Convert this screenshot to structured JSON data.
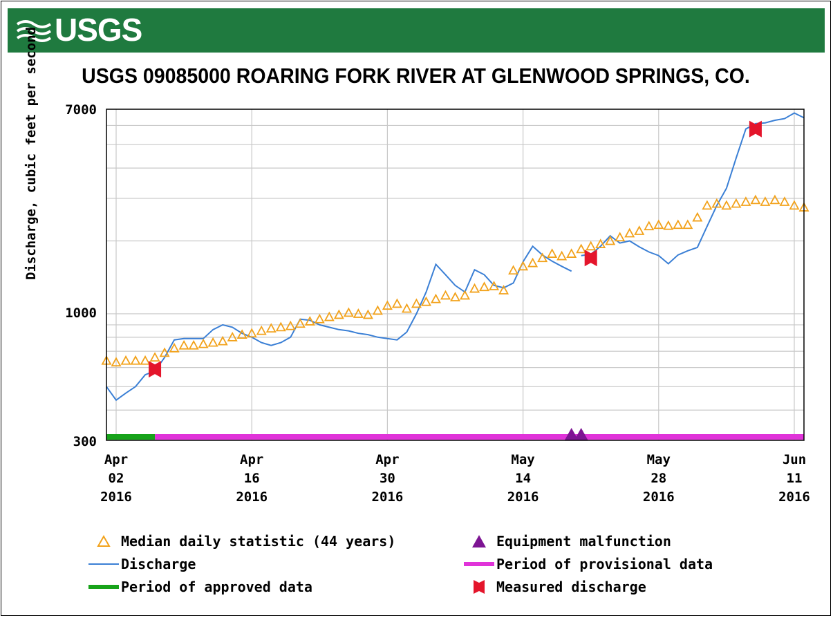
{
  "header": {
    "logo_text": "USGS",
    "title": "USGS 09085000 ROARING FORK RIVER AT GLENWOOD SPRINGS, CO."
  },
  "colors": {
    "banner": "#1f7a3f",
    "discharge": "#3a7fd5",
    "median": "#f2a21b",
    "approved": "#17a31a",
    "provisional": "#e033d9",
    "equipment": "#7d1493",
    "measured": "#e4152b"
  },
  "chart_data": {
    "type": "line",
    "title": "USGS 09085000 ROARING FORK RIVER AT GLENWOOD SPRINGS, CO.",
    "ylabel": "Discharge, cubic feet per second",
    "yscale": "log",
    "ylim": [
      300,
      7000
    ],
    "yticks": [
      "7000",
      "1000",
      "300"
    ],
    "xlim": [
      "2016-04-01",
      "2016-06-12"
    ],
    "xticks": [
      {
        "date": "2016-04-02",
        "line1": "Apr",
        "line2": "02",
        "line3": "2016"
      },
      {
        "date": "2016-04-16",
        "line1": "Apr",
        "line2": "16",
        "line3": "2016"
      },
      {
        "date": "2016-04-30",
        "line1": "Apr",
        "line2": "30",
        "line3": "2016"
      },
      {
        "date": "2016-05-14",
        "line1": "May",
        "line2": "14",
        "line3": "2016"
      },
      {
        "date": "2016-05-28",
        "line1": "May",
        "line2": "28",
        "line3": "2016"
      },
      {
        "date": "2016-06-11",
        "line1": "Jun",
        "line2": "11",
        "line3": "2016"
      }
    ],
    "grid": true,
    "series": [
      {
        "name": "Discharge",
        "kind": "line",
        "x": [
          "2016-04-01",
          "2016-04-02",
          "2016-04-03",
          "2016-04-04",
          "2016-04-05",
          "2016-04-06",
          "2016-04-07",
          "2016-04-08",
          "2016-04-09",
          "2016-04-10",
          "2016-04-11",
          "2016-04-12",
          "2016-04-13",
          "2016-04-14",
          "2016-04-15",
          "2016-04-16",
          "2016-04-17",
          "2016-04-18",
          "2016-04-19",
          "2016-04-20",
          "2016-04-21",
          "2016-04-22",
          "2016-04-23",
          "2016-04-24",
          "2016-04-25",
          "2016-04-26",
          "2016-04-27",
          "2016-04-28",
          "2016-04-29",
          "2016-04-30",
          "2016-05-01",
          "2016-05-02",
          "2016-05-03",
          "2016-05-04",
          "2016-05-05",
          "2016-05-06",
          "2016-05-07",
          "2016-05-08",
          "2016-05-09",
          "2016-05-10",
          "2016-05-11",
          "2016-05-12",
          "2016-05-13",
          "2016-05-14",
          "2016-05-15",
          "2016-05-16",
          "2016-05-17",
          "2016-05-18",
          "2016-05-19"
        ],
        "values": [
          500,
          440,
          470,
          500,
          560,
          580,
          660,
          780,
          790,
          790,
          790,
          860,
          900,
          880,
          830,
          800,
          760,
          740,
          760,
          800,
          950,
          940,
          900,
          880,
          860,
          850,
          830,
          820,
          800,
          790,
          780,
          840,
          1000,
          1230,
          1600,
          1450,
          1310,
          1230,
          1520,
          1450,
          1310,
          1280,
          1340,
          1640,
          1900,
          1750,
          1650,
          1570,
          1500
        ]
      },
      {
        "name": "Discharge",
        "kind": "line",
        "x": [
          "2016-05-20",
          "2016-05-21",
          "2016-05-22",
          "2016-05-23",
          "2016-05-24",
          "2016-05-25",
          "2016-05-26",
          "2016-05-27",
          "2016-05-28",
          "2016-05-29",
          "2016-05-30",
          "2016-05-31",
          "2016-06-01",
          "2016-06-02",
          "2016-06-03",
          "2016-06-04",
          "2016-06-05",
          "2016-06-06",
          "2016-06-07",
          "2016-06-08",
          "2016-06-09",
          "2016-06-10",
          "2016-06-11",
          "2016-06-12"
        ],
        "values": [
          1740,
          1760,
          1900,
          2100,
          1960,
          2000,
          1890,
          1800,
          1740,
          1610,
          1750,
          1820,
          1880,
          2300,
          2800,
          3300,
          4400,
          5800,
          6100,
          6150,
          6300,
          6400,
          6750,
          6450
        ]
      },
      {
        "name": "Median daily statistic (44 years)",
        "kind": "marker",
        "x": [
          "2016-04-01",
          "2016-04-02",
          "2016-04-03",
          "2016-04-04",
          "2016-04-05",
          "2016-04-06",
          "2016-04-07",
          "2016-04-08",
          "2016-04-09",
          "2016-04-10",
          "2016-04-11",
          "2016-04-12",
          "2016-04-13",
          "2016-04-14",
          "2016-04-15",
          "2016-04-16",
          "2016-04-17",
          "2016-04-18",
          "2016-04-19",
          "2016-04-20",
          "2016-04-21",
          "2016-04-22",
          "2016-04-23",
          "2016-04-24",
          "2016-04-25",
          "2016-04-26",
          "2016-04-27",
          "2016-04-28",
          "2016-04-29",
          "2016-04-30",
          "2016-05-01",
          "2016-05-02",
          "2016-05-03",
          "2016-05-04",
          "2016-05-05",
          "2016-05-06",
          "2016-05-07",
          "2016-05-08",
          "2016-05-09",
          "2016-05-10",
          "2016-05-11",
          "2016-05-12",
          "2016-05-13",
          "2016-05-14",
          "2016-05-15",
          "2016-05-16",
          "2016-05-17",
          "2016-05-18",
          "2016-05-19",
          "2016-05-20",
          "2016-05-21",
          "2016-05-22",
          "2016-05-23",
          "2016-05-24",
          "2016-05-25",
          "2016-05-26",
          "2016-05-27",
          "2016-05-28",
          "2016-05-29",
          "2016-05-30",
          "2016-05-31",
          "2016-06-01",
          "2016-06-02",
          "2016-06-03",
          "2016-06-04",
          "2016-06-05",
          "2016-06-06",
          "2016-06-07",
          "2016-06-08",
          "2016-06-09",
          "2016-06-10",
          "2016-06-11",
          "2016-06-12"
        ],
        "values": [
          640,
          630,
          640,
          640,
          640,
          660,
          690,
          720,
          740,
          740,
          750,
          760,
          770,
          800,
          820,
          830,
          850,
          870,
          880,
          890,
          910,
          930,
          950,
          970,
          990,
          1010,
          1000,
          990,
          1030,
          1080,
          1100,
          1050,
          1100,
          1120,
          1150,
          1190,
          1170,
          1190,
          1270,
          1290,
          1300,
          1250,
          1510,
          1570,
          1620,
          1700,
          1770,
          1730,
          1770,
          1850,
          1900,
          1940,
          2000,
          2070,
          2150,
          2200,
          2300,
          2330,
          2310,
          2330,
          2330,
          2500,
          2800,
          2850,
          2800,
          2850,
          2900,
          2950,
          2900,
          2950,
          2900,
          2800,
          2750
        ]
      }
    ],
    "equipment_malfunction": [
      "2016-05-19",
      "2016-05-20"
    ],
    "measured_discharge": [
      {
        "x": "2016-04-06",
        "y": 590
      },
      {
        "x": "2016-05-21",
        "y": 1700
      },
      {
        "x": "2016-06-07",
        "y": 5800
      }
    ],
    "approved_period": [
      "2016-04-01",
      "2016-04-06"
    ],
    "provisional_period": [
      "2016-04-06",
      "2016-06-12"
    ]
  },
  "legend": {
    "median": "Median daily statistic (44 years)",
    "discharge": "Discharge",
    "approved": "Period of approved data",
    "equipment": "Equipment malfunction",
    "provisional": "Period of provisional data",
    "measured": "Measured discharge"
  }
}
